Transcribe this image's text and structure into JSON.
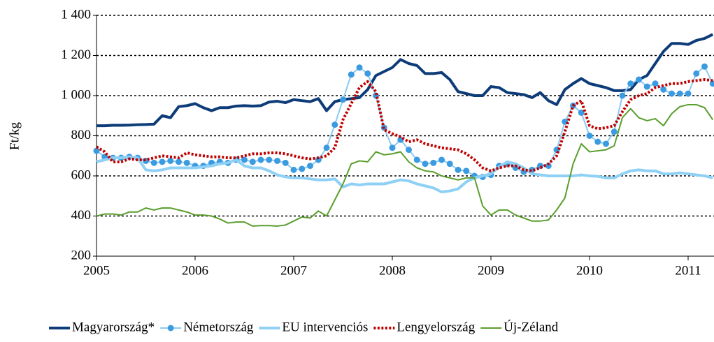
{
  "chart_data": {
    "type": "line",
    "ylabel": "Ft/kg",
    "categories": [
      "2005",
      null,
      null,
      null,
      null,
      null,
      null,
      null,
      null,
      null,
      null,
      null,
      "2006",
      null,
      null,
      null,
      null,
      null,
      null,
      null,
      null,
      null,
      null,
      null,
      "2007",
      null,
      null,
      null,
      null,
      null,
      null,
      null,
      null,
      null,
      null,
      null,
      "2008",
      null,
      null,
      null,
      null,
      null,
      null,
      null,
      null,
      null,
      null,
      null,
      "2009",
      null,
      null,
      null,
      null,
      null,
      null,
      null,
      null,
      null,
      null,
      null,
      "2010",
      null,
      null,
      null,
      null,
      null,
      null,
      null,
      null,
      null,
      null,
      null,
      "2011",
      null,
      null,
      null
    ],
    "ylim": [
      200,
      1400
    ],
    "yticks": [
      200,
      400,
      600,
      800,
      {
        "value": 1000,
        "label": "1 000"
      },
      {
        "value": 1200,
        "label": "1 200"
      },
      {
        "value": 1400,
        "label": "1 400"
      }
    ],
    "grid": true,
    "legend": "bottom",
    "series": [
      {
        "name": "Magyarország*",
        "color": "#0d3c78",
        "width": 4,
        "values": [
          850,
          850,
          852,
          852,
          853,
          855,
          856,
          858,
          900,
          890,
          945,
          950,
          960,
          940,
          925,
          940,
          940,
          948,
          950,
          948,
          950,
          968,
          972,
          965,
          980,
          975,
          970,
          985,
          925,
          970,
          980,
          985,
          990,
          1030,
          1100,
          1120,
          1140,
          1180,
          1160,
          1150,
          1110,
          1110,
          1115,
          1080,
          1020,
          1010,
          1000,
          1000,
          1045,
          1040,
          1015,
          1010,
          1005,
          990,
          1015,
          975,
          955,
          1030,
          1060,
          1085,
          1060,
          1050,
          1040,
          1025,
          1025,
          1030,
          1080,
          1100,
          1160,
          1220,
          1260,
          1260,
          1255,
          1275,
          1285,
          1305
        ]
      },
      {
        "name": "Németország",
        "color": "#3a9be0",
        "width": 2,
        "markers": true,
        "values": [
          725,
          695,
          690,
          690,
          695,
          690,
          675,
          665,
          670,
          675,
          670,
          665,
          650,
          650,
          665,
          670,
          665,
          680,
          680,
          670,
          680,
          680,
          675,
          665,
          630,
          635,
          650,
          680,
          740,
          855,
          980,
          1105,
          1140,
          1110,
          1000,
          840,
          740,
          780,
          730,
          680,
          660,
          665,
          680,
          660,
          630,
          625,
          600,
          595,
          605,
          650,
          660,
          640,
          620,
          630,
          650,
          650,
          730,
          870,
          950,
          915,
          800,
          770,
          760,
          820,
          1000,
          1060,
          1080,
          1045,
          1060,
          1030,
          1010,
          1010,
          1010,
          1110,
          1145,
          1060
        ]
      },
      {
        "name": "EU intervenciós",
        "color": "#8fd0f5",
        "width": 4,
        "values": [
          670,
          680,
          690,
          690,
          695,
          690,
          630,
          625,
          630,
          640,
          640,
          640,
          640,
          645,
          650,
          660,
          665,
          680,
          650,
          640,
          640,
          625,
          605,
          595,
          590,
          590,
          585,
          580,
          580,
          585,
          545,
          560,
          555,
          560,
          560,
          560,
          570,
          580,
          575,
          560,
          550,
          540,
          520,
          525,
          535,
          570,
          590,
          600,
          610,
          645,
          670,
          660,
          640,
          610,
          605,
          600,
          600,
          600,
          600,
          605,
          600,
          598,
          590,
          590,
          610,
          625,
          630,
          625,
          625,
          610,
          610,
          615,
          610,
          605,
          600,
          590
        ]
      },
      {
        "name": "Lengyelország",
        "color": "#c00000",
        "width": 4,
        "dotted": true,
        "values": [
          745,
          720,
          670,
          670,
          685,
          680,
          680,
          690,
          700,
          695,
          690,
          715,
          705,
          700,
          695,
          695,
          690,
          690,
          700,
          710,
          710,
          715,
          715,
          710,
          700,
          690,
          685,
          690,
          700,
          740,
          880,
          960,
          1040,
          1070,
          1020,
          830,
          810,
          795,
          770,
          780,
          760,
          750,
          740,
          735,
          730,
          710,
          680,
          640,
          625,
          640,
          650,
          650,
          630,
          625,
          640,
          660,
          700,
          820,
          950,
          975,
          850,
          835,
          840,
          850,
          920,
          980,
          1000,
          1010,
          1040,
          1050,
          1060,
          1060,
          1070,
          1075,
          1080,
          1075
        ]
      },
      {
        "name": "Új-Zéland",
        "color": "#5a9e2e",
        "width": 2,
        "values": [
          400,
          410,
          410,
          405,
          420,
          420,
          440,
          430,
          440,
          440,
          430,
          420,
          405,
          405,
          400,
          385,
          365,
          370,
          370,
          350,
          352,
          352,
          350,
          355,
          375,
          395,
          390,
          425,
          400,
          480,
          560,
          660,
          675,
          670,
          720,
          705,
          710,
          720,
          670,
          640,
          625,
          620,
          600,
          590,
          580,
          590,
          590,
          450,
          405,
          430,
          430,
          405,
          390,
          375,
          375,
          380,
          430,
          490,
          660,
          760,
          720,
          725,
          730,
          750,
          890,
          935,
          890,
          875,
          885,
          850,
          910,
          945,
          955,
          955,
          940,
          880
        ]
      }
    ]
  }
}
